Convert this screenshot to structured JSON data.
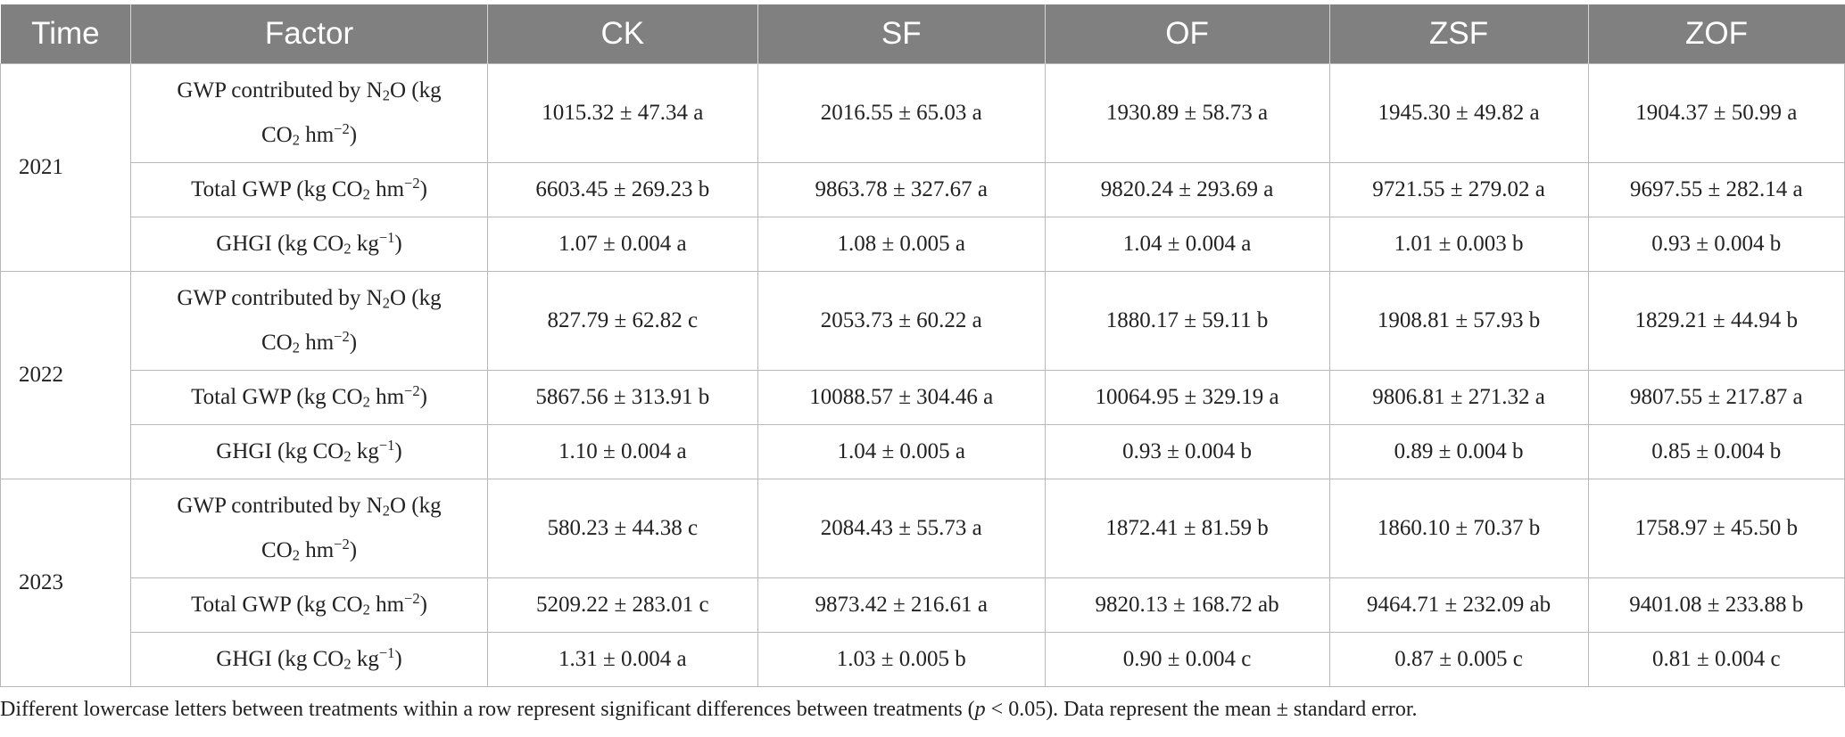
{
  "headers": [
    "Time",
    "Factor",
    "CK",
    "SF",
    "OF",
    "ZSF",
    "ZOF"
  ],
  "factor_text": {
    "gwp_pre": "GWP contributed by N",
    "two": "2",
    "o_kg": "O (kg",
    "co": "CO",
    "hm": " hm",
    "minus_two": "−2",
    "close": ")",
    "total_pre": "Total GWP (kg CO",
    "ghgi_pre": "GHGI (kg CO",
    "kg": " kg",
    "minus_one": "−1"
  },
  "groups": [
    {
      "year": "2021",
      "gwp_n2o": [
        "1015.32 ± 47.34 a",
        "2016.55 ± 65.03 a",
        "1930.89 ± 58.73 a",
        "1945.30 ± 49.82 a",
        "1904.37 ± 50.99 a"
      ],
      "total_gwp": [
        "6603.45 ± 269.23 b",
        "9863.78 ± 327.67 a",
        "9820.24 ± 293.69 a",
        "9721.55 ± 279.02 a",
        "9697.55 ± 282.14 a"
      ],
      "ghgi": [
        "1.07 ± 0.004 a",
        "1.08 ± 0.005 a",
        "1.04 ± 0.004 a",
        "1.01 ± 0.003 b",
        "0.93 ± 0.004 b"
      ]
    },
    {
      "year": "2022",
      "gwp_n2o": [
        "827.79 ± 62.82 c",
        "2053.73 ± 60.22 a",
        "1880.17 ± 59.11 b",
        "1908.81 ± 57.93 b",
        "1829.21 ± 44.94 b"
      ],
      "total_gwp": [
        "5867.56 ± 313.91 b",
        "10088.57 ± 304.46 a",
        "10064.95 ± 329.19 a",
        "9806.81 ± 271.32 a",
        "9807.55 ± 217.87 a"
      ],
      "ghgi": [
        "1.10 ± 0.004 a",
        "1.04 ± 0.005 a",
        "0.93 ± 0.004 b",
        "0.89 ± 0.004 b",
        "0.85 ± 0.004 b"
      ]
    },
    {
      "year": "2023",
      "gwp_n2o": [
        "580.23 ± 44.38 c",
        "2084.43 ± 55.73 a",
        "1872.41 ± 81.59 b",
        "1860.10 ± 70.37 b",
        "1758.97 ± 45.50 b"
      ],
      "total_gwp": [
        "5209.22 ± 283.01 c",
        "9873.42 ± 216.61 a",
        "9820.13 ± 168.72 ab",
        "9464.71 ± 232.09 ab",
        "9401.08 ± 233.88 b"
      ],
      "ghgi": [
        "1.31 ± 0.004 a",
        "1.03 ± 0.005 b",
        "0.90 ± 0.004 c",
        "0.87 ± 0.005 c",
        "0.81 ± 0.004 c"
      ]
    }
  ],
  "footnote": {
    "part1": "Different lowercase letters between treatments within a row represent significant differences between treatments (",
    "p": "p",
    "part2": " < 0.05). Data represent the mean ± standard error."
  }
}
